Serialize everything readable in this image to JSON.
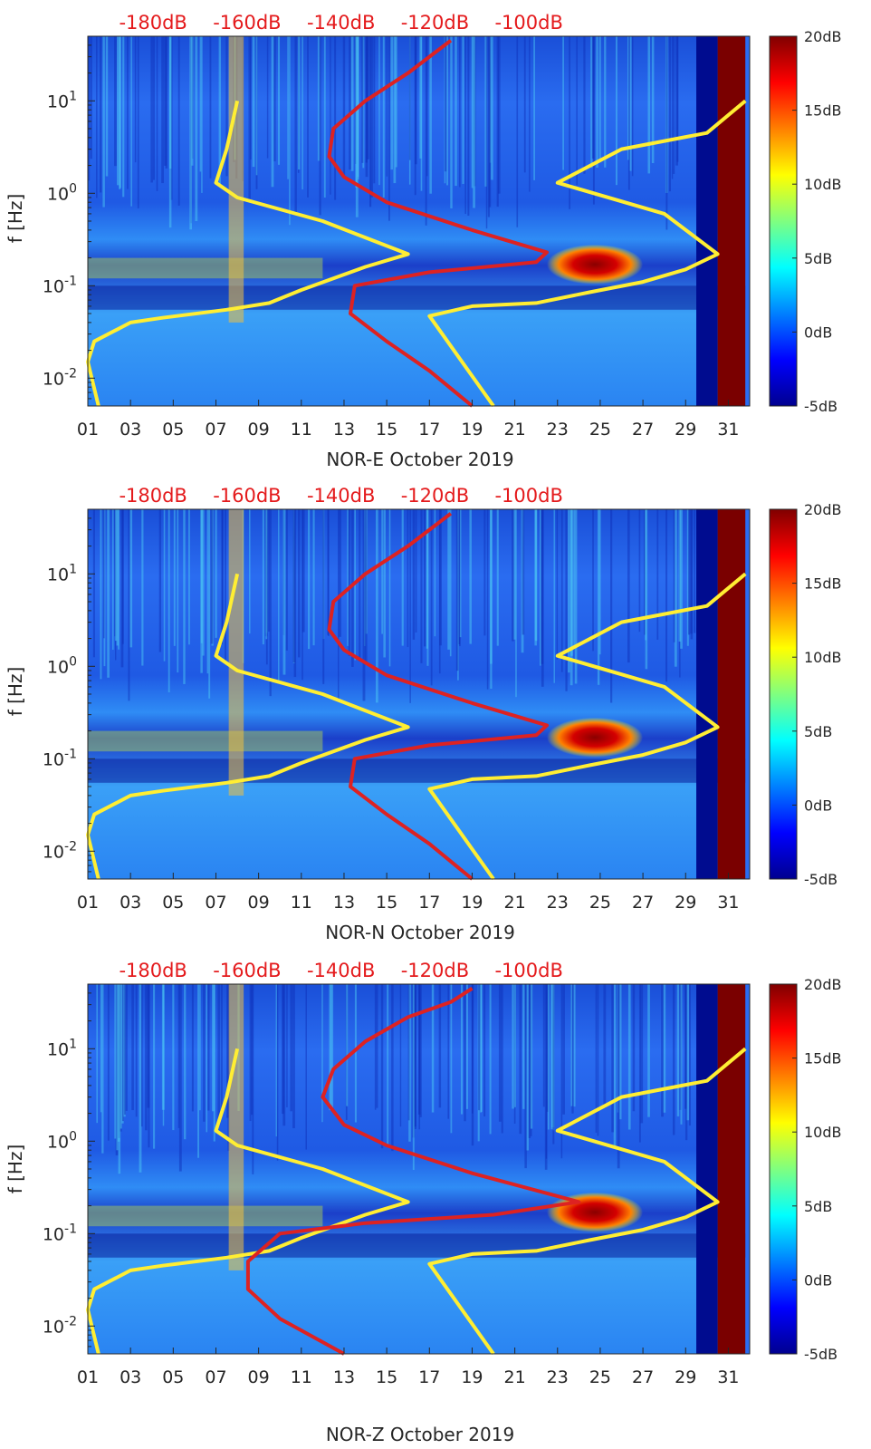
{
  "chart_data": [
    {
      "type": "heatmap",
      "title": "",
      "xlabel": "NOR-E October 2019",
      "ylabel": "f [Hz]",
      "x_ticks": [
        "01",
        "03",
        "05",
        "07",
        "09",
        "11",
        "13",
        "15",
        "17",
        "19",
        "21",
        "23",
        "25",
        "27",
        "29",
        "31"
      ],
      "y_ticks": [
        "10^-2",
        "10^-1",
        "10^0",
        "10^1"
      ],
      "top_ticks": [
        "-180dB",
        "-160dB",
        "-140dB",
        "-120dB",
        "-100dB"
      ],
      "colorbar_ticks": [
        "-5dB",
        "0dB",
        "5dB",
        "10dB",
        "15dB",
        "20dB"
      ],
      "xlim": [
        1,
        32
      ],
      "ylim": [
        0.005,
        50
      ],
      "yscale": "log",
      "colorbar_range": [
        -5,
        20
      ],
      "peak_band": {
        "f": 0.17,
        "days": [
          22.5,
          27
        ],
        "level_db": 20
      },
      "series": [
        {
          "color": "#ffee33",
          "points": [
            [
              1.5,
              0.005
            ],
            [
              1,
              0.015
            ],
            [
              1.3,
              0.025
            ],
            [
              3,
              0.04
            ],
            [
              4.5,
              0.045
            ],
            [
              7.5,
              0.055
            ],
            [
              9.5,
              0.065
            ],
            [
              11,
              0.09
            ],
            [
              14,
              0.16
            ],
            [
              16,
              0.22
            ],
            [
              12,
              0.5
            ],
            [
              8,
              0.9
            ],
            [
              7,
              1.3
            ],
            [
              7.5,
              3
            ],
            [
              8,
              10
            ]
          ]
        },
        {
          "color": "#ffee33",
          "points": [
            [
              20,
              0.005
            ],
            [
              17,
              0.047
            ],
            [
              19,
              0.06
            ],
            [
              22,
              0.065
            ],
            [
              24.5,
              0.085
            ],
            [
              27,
              0.11
            ],
            [
              29,
              0.15
            ],
            [
              30.5,
              0.22
            ],
            [
              28,
              0.6
            ],
            [
              23,
              1.3
            ],
            [
              26,
              3
            ],
            [
              30,
              4.5
            ],
            [
              31.8,
              10
            ]
          ]
        },
        {
          "color": "#dd2222",
          "points": [
            [
              19,
              0.005
            ],
            [
              17,
              0.012
            ],
            [
              15,
              0.025
            ],
            [
              13.3,
              0.05
            ],
            [
              13.5,
              0.1
            ],
            [
              17,
              0.14
            ],
            [
              22,
              0.18
            ],
            [
              22.5,
              0.23
            ],
            [
              19,
              0.4
            ],
            [
              15,
              0.8
            ],
            [
              13,
              1.5
            ],
            [
              12.3,
              2.5
            ],
            [
              12.5,
              5
            ],
            [
              14,
              10
            ],
            [
              16,
              20
            ],
            [
              17,
              30
            ],
            [
              18,
              45
            ]
          ]
        }
      ]
    },
    {
      "type": "heatmap",
      "title": "",
      "xlabel": "NOR-N October 2019",
      "ylabel": "f [Hz]",
      "x_ticks": [
        "01",
        "03",
        "05",
        "07",
        "09",
        "11",
        "13",
        "15",
        "17",
        "19",
        "21",
        "23",
        "25",
        "27",
        "29",
        "31"
      ],
      "y_ticks": [
        "10^-2",
        "10^-1",
        "10^0",
        "10^1"
      ],
      "top_ticks": [
        "-180dB",
        "-160dB",
        "-140dB",
        "-120dB",
        "-100dB"
      ],
      "colorbar_ticks": [
        "-5dB",
        "0dB",
        "5dB",
        "10dB",
        "15dB",
        "20dB"
      ],
      "xlim": [
        1,
        32
      ],
      "ylim": [
        0.005,
        50
      ],
      "yscale": "log",
      "colorbar_range": [
        -5,
        20
      ],
      "peak_band": {
        "f": 0.17,
        "days": [
          22.5,
          27
        ],
        "level_db": 20
      },
      "series": [
        {
          "color": "#ffee33",
          "points": [
            [
              1.5,
              0.005
            ],
            [
              1,
              0.015
            ],
            [
              1.3,
              0.025
            ],
            [
              3,
              0.04
            ],
            [
              4.5,
              0.045
            ],
            [
              7.5,
              0.055
            ],
            [
              9.5,
              0.065
            ],
            [
              11,
              0.09
            ],
            [
              14,
              0.16
            ],
            [
              16,
              0.22
            ],
            [
              12,
              0.5
            ],
            [
              8,
              0.9
            ],
            [
              7,
              1.3
            ],
            [
              7.5,
              3
            ],
            [
              8,
              10
            ]
          ]
        },
        {
          "color": "#ffee33",
          "points": [
            [
              20,
              0.005
            ],
            [
              17,
              0.047
            ],
            [
              19,
              0.06
            ],
            [
              22,
              0.065
            ],
            [
              24.5,
              0.085
            ],
            [
              27,
              0.11
            ],
            [
              29,
              0.15
            ],
            [
              30.5,
              0.22
            ],
            [
              28,
              0.6
            ],
            [
              23,
              1.3
            ],
            [
              26,
              3
            ],
            [
              30,
              4.5
            ],
            [
              31.8,
              10
            ]
          ]
        },
        {
          "color": "#dd2222",
          "points": [
            [
              19,
              0.005
            ],
            [
              17,
              0.012
            ],
            [
              15,
              0.025
            ],
            [
              13.3,
              0.05
            ],
            [
              13.5,
              0.1
            ],
            [
              17,
              0.14
            ],
            [
              22,
              0.18
            ],
            [
              22.5,
              0.23
            ],
            [
              19,
              0.4
            ],
            [
              15,
              0.8
            ],
            [
              13,
              1.5
            ],
            [
              12.3,
              2.5
            ],
            [
              12.5,
              5
            ],
            [
              14,
              10
            ],
            [
              16,
              20
            ],
            [
              17,
              30
            ],
            [
              18,
              45
            ]
          ]
        }
      ]
    },
    {
      "type": "heatmap",
      "title": "",
      "xlabel": "NOR-Z October 2019",
      "ylabel": "f [Hz]",
      "x_ticks": [
        "01",
        "03",
        "05",
        "07",
        "09",
        "11",
        "13",
        "15",
        "17",
        "19",
        "21",
        "23",
        "25",
        "27",
        "29",
        "31"
      ],
      "y_ticks": [
        "10^-2",
        "10^-1",
        "10^0",
        "10^1"
      ],
      "top_ticks": [
        "-180dB",
        "-160dB",
        "-140dB",
        "-120dB",
        "-100dB"
      ],
      "colorbar_ticks": [
        "-5dB",
        "0dB",
        "5dB",
        "10dB",
        "15dB",
        "20dB"
      ],
      "xlim": [
        1,
        32
      ],
      "ylim": [
        0.005,
        50
      ],
      "yscale": "log",
      "colorbar_range": [
        -5,
        20
      ],
      "peak_band": {
        "f": 0.17,
        "days": [
          22.5,
          27
        ],
        "level_db": 20
      },
      "series": [
        {
          "color": "#ffee33",
          "points": [
            [
              1.5,
              0.005
            ],
            [
              1,
              0.015
            ],
            [
              1.3,
              0.025
            ],
            [
              3,
              0.04
            ],
            [
              4.5,
              0.045
            ],
            [
              7.5,
              0.055
            ],
            [
              9.5,
              0.065
            ],
            [
              11,
              0.09
            ],
            [
              14,
              0.16
            ],
            [
              16,
              0.22
            ],
            [
              12,
              0.5
            ],
            [
              8,
              0.9
            ],
            [
              7,
              1.3
            ],
            [
              7.5,
              3
            ],
            [
              8,
              10
            ]
          ]
        },
        {
          "color": "#ffee33",
          "points": [
            [
              20,
              0.005
            ],
            [
              17,
              0.047
            ],
            [
              19,
              0.06
            ],
            [
              22,
              0.065
            ],
            [
              24.5,
              0.085
            ],
            [
              27,
              0.11
            ],
            [
              29,
              0.15
            ],
            [
              30.5,
              0.22
            ],
            [
              28,
              0.6
            ],
            [
              23,
              1.3
            ],
            [
              26,
              3
            ],
            [
              30,
              4.5
            ],
            [
              31.8,
              10
            ]
          ]
        },
        {
          "color": "#dd2222",
          "points": [
            [
              13,
              0.005
            ],
            [
              10,
              0.012
            ],
            [
              8.5,
              0.025
            ],
            [
              8.5,
              0.05
            ],
            [
              10,
              0.1
            ],
            [
              14,
              0.13
            ],
            [
              20,
              0.16
            ],
            [
              24,
              0.22
            ],
            [
              19,
              0.45
            ],
            [
              15,
              0.9
            ],
            [
              13,
              1.5
            ],
            [
              12,
              3
            ],
            [
              12.5,
              6
            ],
            [
              14,
              12
            ],
            [
              16,
              22
            ],
            [
              18,
              32
            ],
            [
              19,
              45
            ]
          ]
        }
      ]
    }
  ]
}
